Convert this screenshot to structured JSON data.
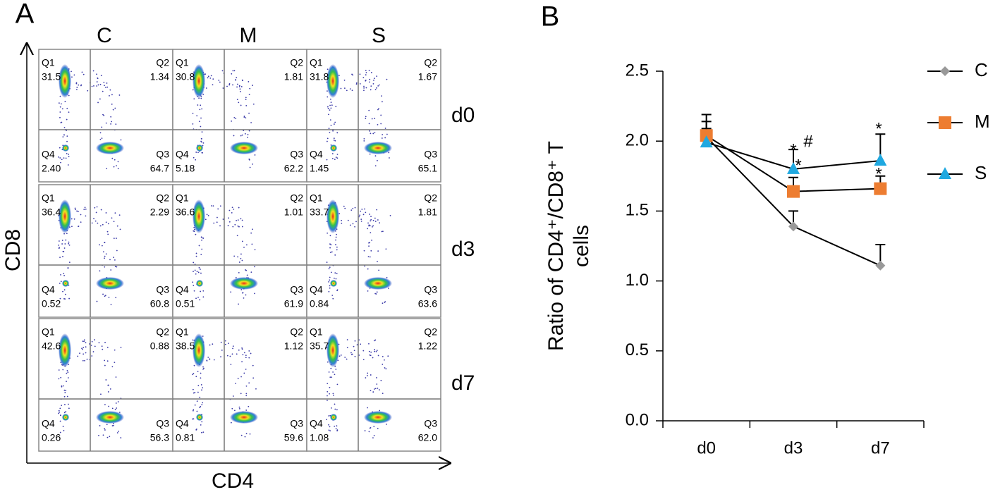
{
  "panel_a": {
    "label": "A",
    "columns": [
      "C",
      "M",
      "S"
    ],
    "rows": [
      "d0",
      "d3",
      "d7"
    ],
    "x_label": "CD4",
    "y_label": "CD8",
    "plots": [
      [
        {
          "Q1": [
            "Q1",
            "31.5"
          ],
          "Q2": [
            "Q2",
            "1.34"
          ],
          "Q3": [
            "Q3",
            "64.7"
          ],
          "Q4": [
            "Q4",
            "2.40"
          ]
        },
        {
          "Q1": [
            "Q1",
            "30.8"
          ],
          "Q2": [
            "Q2",
            "1.81"
          ],
          "Q3": [
            "Q3",
            "62.2"
          ],
          "Q4": [
            "Q4",
            "5.18"
          ]
        },
        {
          "Q1": [
            "Q1",
            "31.8"
          ],
          "Q2": [
            "Q2",
            "1.67"
          ],
          "Q3": [
            "Q3",
            "65.1"
          ],
          "Q4": [
            "Q4",
            "1.45"
          ]
        }
      ],
      [
        {
          "Q1": [
            "Q1",
            "36.4"
          ],
          "Q2": [
            "Q2",
            "2.29"
          ],
          "Q3": [
            "Q3",
            "60.8"
          ],
          "Q4": [
            "Q4",
            "0.52"
          ]
        },
        {
          "Q1": [
            "Q1",
            "36.6"
          ],
          "Q2": [
            "Q2",
            "1.01"
          ],
          "Q3": [
            "Q3",
            "61.9"
          ],
          "Q4": [
            "Q4",
            "0.51"
          ]
        },
        {
          "Q1": [
            "Q1",
            "33.7"
          ],
          "Q2": [
            "Q2",
            "1.81"
          ],
          "Q3": [
            "Q3",
            "63.6"
          ],
          "Q4": [
            "Q4",
            "0.84"
          ]
        }
      ],
      [
        {
          "Q1": [
            "Q1",
            "42.6"
          ],
          "Q2": [
            "Q2",
            "0.88"
          ],
          "Q3": [
            "Q3",
            "56.3"
          ],
          "Q4": [
            "Q4",
            "0.26"
          ]
        },
        {
          "Q1": [
            "Q1",
            "38.5"
          ],
          "Q2": [
            "Q2",
            "1.12"
          ],
          "Q3": [
            "Q3",
            "59.6"
          ],
          "Q4": [
            "Q4",
            "0.81"
          ]
        },
        {
          "Q1": [
            "Q1",
            "35.7"
          ],
          "Q2": [
            "Q2",
            "1.22"
          ],
          "Q3": [
            "Q3",
            "62.0"
          ],
          "Q4": [
            "Q4",
            "1.08"
          ]
        }
      ]
    ]
  },
  "chart_data": {
    "type": "line",
    "panel_label": "B",
    "y_label": [
      "Ratio of CD4⁺/CD8⁺ T",
      "cells"
    ],
    "categories": [
      "d0",
      "d3",
      "d7"
    ],
    "series": [
      {
        "name": "C",
        "color": "#999999",
        "marker": "diamond",
        "values": [
          2.03,
          1.39,
          1.11
        ],
        "errors": [
          0.16,
          0.11,
          0.15
        ]
      },
      {
        "name": "M",
        "color": "#ed7d31",
        "marker": "square",
        "values": [
          2.04,
          1.64,
          1.66
        ],
        "errors": [
          0.1,
          0.1,
          0.09
        ]
      },
      {
        "name": "S",
        "color": "#1fa8e0",
        "marker": "triangle",
        "values": [
          1.99,
          1.8,
          1.86
        ],
        "errors": [
          0.1,
          0.14,
          0.19
        ]
      }
    ],
    "annotations": [
      "*",
      "#",
      "*",
      "*",
      "*"
    ],
    "ylim": [
      0,
      2.5
    ],
    "yticks": [
      {
        "value": 0,
        "label": "0.0"
      },
      0.5,
      {
        "value": 1,
        "label": "1.0"
      },
      1.5,
      {
        "value": 2,
        "label": "2.0"
      },
      2.5
    ]
  }
}
